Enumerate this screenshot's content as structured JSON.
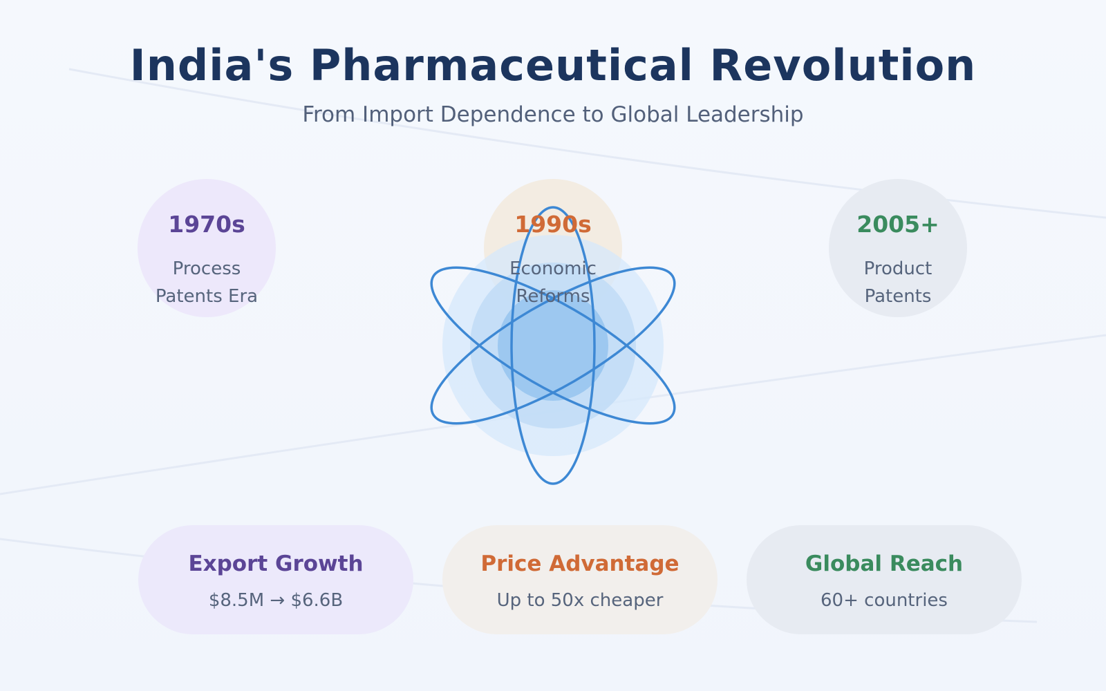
{
  "title": "India's Pharmaceutical Revolution",
  "subtitle": "From Import Dependence to Global Leadership",
  "eras": [
    {
      "year": "1970s",
      "line1": "Process",
      "line2": "Patents Era",
      "color": "#5b4596"
    },
    {
      "year": "1990s",
      "line1": "Economic",
      "line2": "Reforms",
      "color": "#d06a36"
    },
    {
      "year": "2005+",
      "line1": "Product",
      "line2": "Patents",
      "color": "#3a8b5e"
    }
  ],
  "cards": [
    {
      "title": "Export Growth",
      "value": "$8.5M → $6.6B",
      "color": "#5b4596"
    },
    {
      "title": "Price Advantage",
      "value": "Up to 50x cheaper",
      "color": "#d06a36"
    },
    {
      "title": "Global Reach",
      "value": "60+ countries",
      "color": "#3a8b5e"
    }
  ],
  "icons": {
    "center": "atom-icon"
  },
  "colors": {
    "title": "#1c355e",
    "atom": "#3d88d4"
  }
}
